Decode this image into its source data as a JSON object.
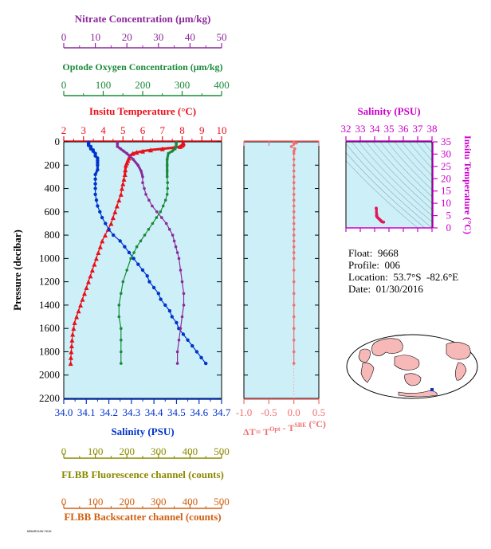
{
  "colors": {
    "nitrate": "#8b2a9a",
    "oxygen": "#1a8a3a",
    "temperature": "#e8101a",
    "salinity": "#0033cc",
    "delta": "#f07070",
    "fluorescence": "#8a8a00",
    "backscatter": "#d06010",
    "panel_bg": "#cdf0f8",
    "ts_axis": "#cc00cc"
  },
  "axes": {
    "nitrate": {
      "label": "Nitrate Concentration (μm/kg)",
      "min": 0,
      "max": 50,
      "ticks": [
        "0",
        "10",
        "20",
        "30",
        "40",
        "50"
      ]
    },
    "oxygen": {
      "label": "Optode Oxygen Concentration (μm/kg)",
      "min": 0,
      "max": 400,
      "ticks": [
        "0",
        "100",
        "200",
        "300",
        "400"
      ]
    },
    "temperature": {
      "label": "Insitu Temperature (°C)",
      "min": 2,
      "max": 10,
      "ticks": [
        "2",
        "3",
        "4",
        "5",
        "6",
        "7",
        "8",
        "9",
        "10"
      ]
    },
    "salinity": {
      "label": "Salinity (PSU)",
      "min": 34.0,
      "max": 34.7,
      "ticks": [
        "34.0",
        "34.1",
        "34.2",
        "34.3",
        "34.4",
        "34.5",
        "34.6",
        "34.7"
      ]
    },
    "pressure": {
      "label": "Pressure (decibar)",
      "min": 0,
      "max": 2200,
      "ticks": [
        "0",
        "200",
        "400",
        "600",
        "800",
        "1000",
        "1200",
        "1400",
        "1600",
        "1800",
        "2000",
        "2200"
      ]
    },
    "delta": {
      "label": "ΔT= T",
      "sup1": "Opt",
      "mid": " - T",
      "sup2": "SBE",
      "unit": " (°C)",
      "min": -1.0,
      "max": 0.5,
      "ticks": [
        "-1.0",
        "-0.5",
        "0.0",
        "0.5"
      ]
    },
    "fluorescence": {
      "label": "FLBB Fluorescence channel (counts)",
      "min": 0,
      "max": 500,
      "ticks": [
        "0",
        "100",
        "200",
        "300",
        "400",
        "500"
      ]
    },
    "backscatter": {
      "label": "FLBB Backscatter channel (counts)",
      "min": 0,
      "max": 500,
      "ticks": [
        "0",
        "100",
        "200",
        "300",
        "400",
        "500"
      ]
    },
    "ts_salinity": {
      "label": "Salinity (PSU)",
      "min": 32,
      "max": 38,
      "ticks": [
        "32",
        "33",
        "34",
        "35",
        "36",
        "37",
        "38"
      ]
    },
    "ts_temperature": {
      "label": "Insitu Temperature (°C)",
      "min": 0,
      "max": 35,
      "ticks": [
        "0",
        "5",
        "10",
        "15",
        "20",
        "25",
        "30",
        "35"
      ]
    }
  },
  "info": {
    "float": "Float:  9668",
    "profile": "Profile:  006",
    "location": "Location:  53.7°S  -82.6°E",
    "date": "Date:  01/30/2016"
  },
  "footer_text": "MBARI/UW 2016",
  "chart_data": [
    {
      "type": "line",
      "series": [
        {
          "name": "Temperature",
          "axis": "temperature",
          "p": [
            5,
            10,
            15,
            20,
            30,
            40,
            50,
            60,
            70,
            80,
            90,
            100,
            120,
            140,
            160,
            180,
            200,
            240,
            280,
            320,
            360,
            400,
            450,
            500,
            550,
            600,
            650,
            700,
            750,
            800,
            850,
            900,
            950,
            1000,
            1050,
            1100,
            1150,
            1200,
            1250,
            1300,
            1350,
            1400,
            1450,
            1500,
            1550,
            1600,
            1650,
            1700,
            1750,
            1800,
            1850,
            1900
          ],
          "v": [
            8.05,
            8.05,
            8.04,
            8.03,
            8.0,
            7.9,
            7.6,
            7.0,
            6.4,
            6.0,
            5.7,
            5.5,
            5.35,
            5.3,
            5.25,
            5.2,
            5.15,
            5.12,
            5.1,
            5.05,
            5.0,
            4.95,
            4.9,
            4.8,
            4.7,
            4.6,
            4.5,
            4.4,
            4.25,
            4.1,
            3.95,
            3.85,
            3.75,
            3.65,
            3.55,
            3.45,
            3.35,
            3.25,
            3.15,
            3.05,
            2.95,
            2.85,
            2.75,
            2.65,
            2.55,
            2.5,
            2.45,
            2.42,
            2.4,
            2.38,
            2.36,
            2.35
          ]
        },
        {
          "name": "Salinity",
          "axis": "salinity",
          "p": [
            5,
            10,
            20,
            30,
            40,
            50,
            60,
            70,
            80,
            100,
            120,
            140,
            160,
            180,
            200,
            240,
            280,
            320,
            360,
            400,
            450,
            500,
            550,
            600,
            650,
            700,
            750,
            800,
            850,
            900,
            950,
            1000,
            1050,
            1100,
            1150,
            1200,
            1250,
            1300,
            1350,
            1400,
            1450,
            1500,
            1550,
            1600,
            1650,
            1700,
            1750,
            1800,
            1850,
            1900
          ],
          "v": [
            34.11,
            34.11,
            34.11,
            34.11,
            34.12,
            34.12,
            34.12,
            34.13,
            34.13,
            34.14,
            34.14,
            34.15,
            34.15,
            34.15,
            34.15,
            34.15,
            34.14,
            34.14,
            34.14,
            34.14,
            34.14,
            34.145,
            34.15,
            34.16,
            34.17,
            34.185,
            34.2,
            34.22,
            34.25,
            34.27,
            34.29,
            34.31,
            34.33,
            34.35,
            34.37,
            34.38,
            34.4,
            34.42,
            34.43,
            34.45,
            34.47,
            34.48,
            34.5,
            34.51,
            34.53,
            34.55,
            34.57,
            34.59,
            34.61,
            34.63
          ]
        },
        {
          "name": "Nitrate",
          "axis": "nitrate",
          "p": [
            5,
            10,
            20,
            40,
            60,
            80,
            100,
            150,
            200,
            250,
            300,
            350,
            400,
            450,
            500,
            550,
            600,
            650,
            700,
            750,
            800,
            850,
            900,
            950,
            1000,
            1100,
            1200,
            1300,
            1400,
            1500,
            1600,
            1700,
            1800,
            1900
          ],
          "v": [
            17,
            17,
            17,
            17,
            18,
            19,
            20,
            22,
            23.5,
            24.5,
            25,
            25,
            25.5,
            26,
            27,
            28,
            29.5,
            31,
            32.5,
            33.5,
            34.5,
            35,
            35.5,
            36,
            36.5,
            37,
            37.5,
            38,
            38,
            37.5,
            37,
            36.5,
            36,
            36
          ]
        },
        {
          "name": "Oxygen",
          "axis": "oxygen",
          "p": [
            5,
            10,
            20,
            40,
            60,
            80,
            100,
            150,
            200,
            250,
            300,
            350,
            400,
            450,
            500,
            550,
            600,
            650,
            700,
            750,
            800,
            850,
            900,
            950,
            1000,
            1100,
            1200,
            1300,
            1400,
            1500,
            1600,
            1700,
            1800,
            1900
          ],
          "v": [
            285,
            285,
            285,
            285,
            282,
            275,
            265,
            262,
            262,
            262,
            262,
            263,
            263,
            262,
            258,
            252,
            245,
            235,
            225,
            215,
            205,
            195,
            185,
            178,
            170,
            160,
            150,
            145,
            140,
            140,
            145,
            145,
            145,
            145
          ]
        },
        {
          "name": "Delta",
          "axis": "delta",
          "p": [
            5,
            10,
            20,
            40,
            60,
            80,
            100,
            150,
            200,
            250,
            300,
            350,
            400,
            450,
            500,
            550,
            600,
            650,
            700,
            750,
            800,
            850,
            900,
            950,
            1000,
            1100,
            1200,
            1300,
            1400,
            1500,
            1600,
            1700,
            1800,
            1900
          ],
          "v": [
            0.0,
            0.05,
            0.0,
            -0.05,
            0.02,
            0.0,
            0.0,
            0.0,
            0.0,
            0.0,
            0.0,
            0.0,
            0.0,
            0.0,
            0.0,
            0.0,
            0.0,
            0.0,
            0.0,
            0.0,
            0.0,
            0.0,
            0.0,
            0.0,
            0.0,
            0.0,
            0.0,
            0.0,
            0.0,
            0.0,
            0.0,
            0.0,
            0.0,
            0.0
          ]
        }
      ]
    },
    {
      "type": "scatter",
      "x_axis": "ts_salinity",
      "y_axis": "ts_temperature",
      "points": [
        [
          34.11,
          8.05
        ],
        [
          34.11,
          8.0
        ],
        [
          34.12,
          7.6
        ],
        [
          34.13,
          6.4
        ],
        [
          34.14,
          5.5
        ],
        [
          34.15,
          5.3
        ],
        [
          34.15,
          5.15
        ],
        [
          34.14,
          5.05
        ],
        [
          34.14,
          4.95
        ],
        [
          34.14,
          4.8
        ],
        [
          34.16,
          4.6
        ],
        [
          34.18,
          4.4
        ],
        [
          34.22,
          4.1
        ],
        [
          34.27,
          3.85
        ],
        [
          34.31,
          3.65
        ],
        [
          34.35,
          3.45
        ],
        [
          34.38,
          3.25
        ],
        [
          34.42,
          3.05
        ],
        [
          34.45,
          2.85
        ],
        [
          34.48,
          2.65
        ],
        [
          34.51,
          2.5
        ],
        [
          34.55,
          2.42
        ],
        [
          34.59,
          2.38
        ],
        [
          34.63,
          2.35
        ]
      ]
    }
  ]
}
